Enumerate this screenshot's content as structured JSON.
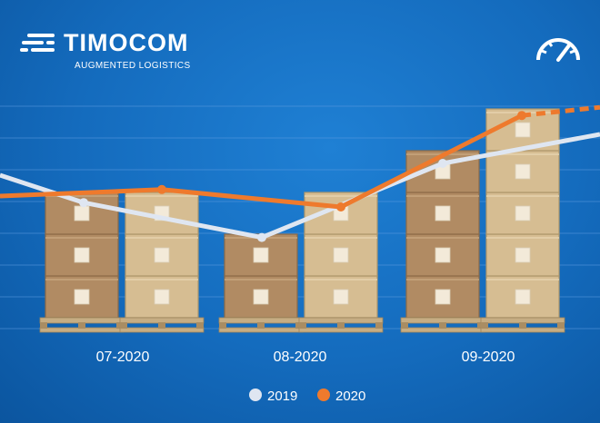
{
  "brand": {
    "name": "TIMOCOM",
    "tagline": "AUGMENTED LOGISTICS",
    "icon": "speedometer-icon"
  },
  "colors": {
    "background": "#146bbd",
    "series_2019": "#dfe6f1",
    "series_2020": "#ee7a2d"
  },
  "chart_data": {
    "type": "bar",
    "categories": [
      "07-2020",
      "08-2020",
      "09-2020"
    ],
    "bars": [
      {
        "category": "07-2020",
        "values": [
          3,
          3
        ]
      },
      {
        "category": "08-2020",
        "values": [
          2,
          3
        ]
      },
      {
        "category": "09-2020",
        "values": [
          4,
          5
        ]
      }
    ],
    "series": [
      {
        "name": "2019",
        "values": [
          3.1,
          2.3,
          4.0
        ],
        "color": "#dfe6f1"
      },
      {
        "name": "2020",
        "values": [
          3.4,
          3.0,
          5.1
        ],
        "color": "#ee7a2d"
      }
    ],
    "grid": true,
    "legend_position": "bottom-center"
  }
}
